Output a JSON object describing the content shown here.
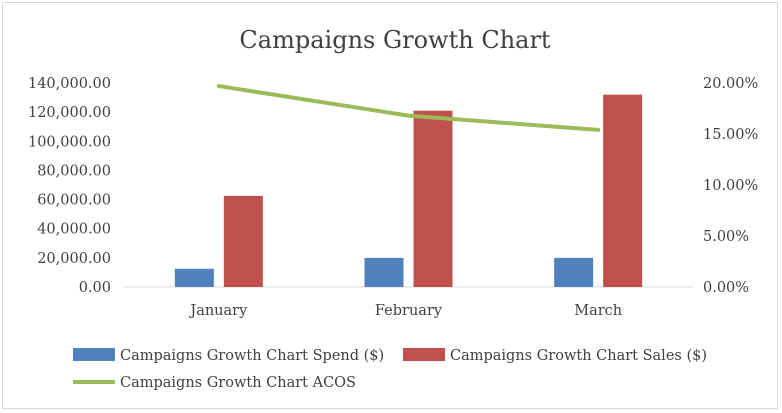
{
  "chart_data": {
    "type": "bar",
    "title": "Campaigns Growth Chart",
    "categories": [
      "January",
      "February",
      "March"
    ],
    "series": [
      {
        "name": "Campaigns Growth Chart  Spend ($)",
        "type": "bar",
        "axis": "left",
        "color": "#4f81bd",
        "values": [
          12500,
          20000,
          20000
        ]
      },
      {
        "name": "Campaigns Growth Chart  Sales ($)",
        "type": "bar",
        "axis": "left",
        "color": "#c0504d",
        "values": [
          62500,
          121000,
          132000
        ]
      },
      {
        "name": "Campaigns Growth Chart  ACOS",
        "type": "line",
        "axis": "right",
        "color": "#9bbb59",
        "values": [
          0.197,
          0.168,
          0.154
        ]
      }
    ],
    "y_left": {
      "range": [
        0,
        140000
      ],
      "ticks": [
        0,
        20000,
        40000,
        60000,
        80000,
        100000,
        120000,
        140000
      ],
      "tick_labels": [
        "0.00",
        "20,000.00",
        "40,000.00",
        "60,000.00",
        "80,000.00",
        "100,000.00",
        "120,000.00",
        "140,000.00"
      ]
    },
    "y_right": {
      "range": [
        0,
        0.2
      ],
      "ticks": [
        0,
        0.05,
        0.1,
        0.15,
        0.2
      ],
      "tick_labels": [
        "0.00%",
        "5.00%",
        "10.00%",
        "15.00%",
        "20.00%"
      ]
    },
    "xlabel": "",
    "ylabel": "",
    "grid": false,
    "legend_position": "bottom"
  }
}
